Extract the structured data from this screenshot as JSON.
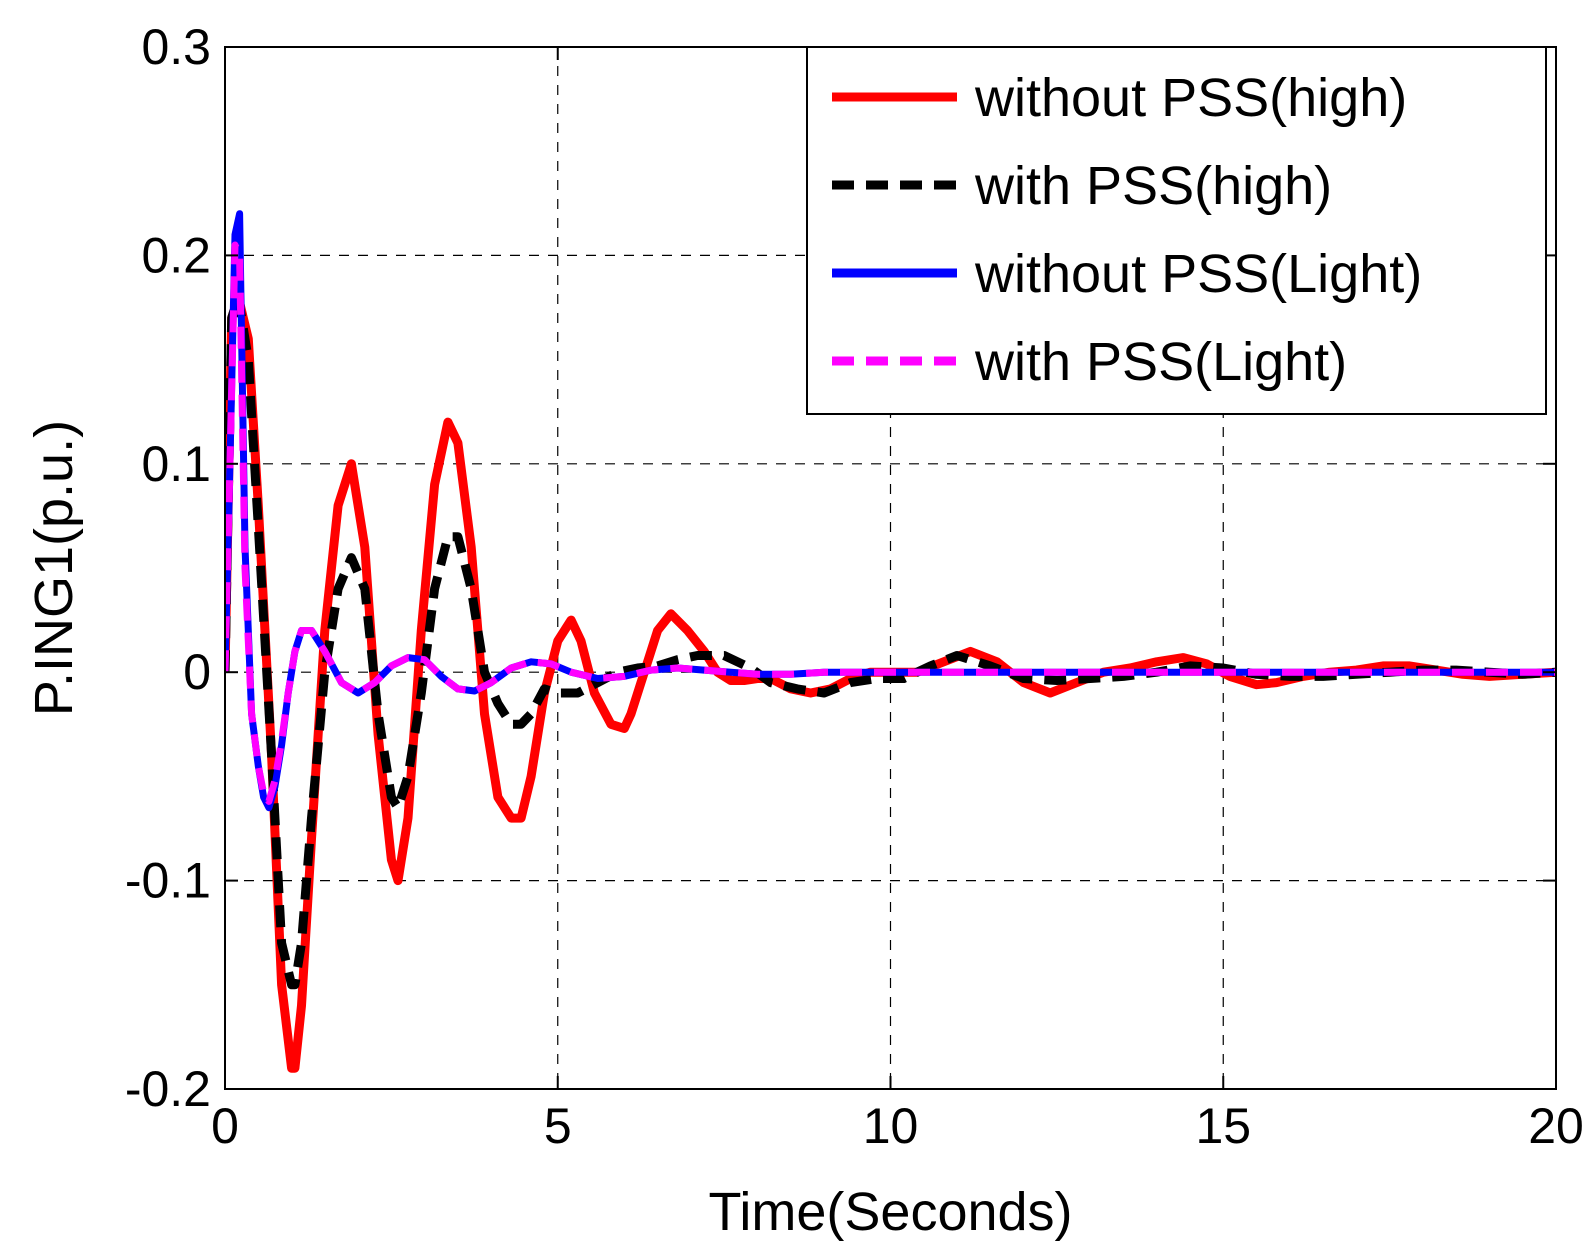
{
  "chart_data": {
    "type": "line",
    "title": "",
    "xlabel": "Time(Seconds)",
    "ylabel": "P.ING1(p.u.)",
    "xlim": [
      0,
      20
    ],
    "ylim": [
      -0.2,
      0.3
    ],
    "xticks": [
      0,
      5,
      10,
      15,
      20
    ],
    "xtick_labels": [
      "0",
      "5",
      "10",
      "15",
      "20"
    ],
    "yticks": [
      -0.2,
      -0.1,
      0,
      0.1,
      0.2,
      0.3
    ],
    "ytick_labels": [
      "-0.2",
      "-0.1",
      "0",
      "0.1",
      "0.2",
      "0.3"
    ],
    "grid": true,
    "legend_position": "top-right",
    "series": [
      {
        "name": "without PSS(high)",
        "color": "#ff0000",
        "dash": "solid",
        "x": [
          0,
          0.1,
          0.2,
          0.35,
          0.5,
          0.7,
          0.85,
          1.0,
          1.05,
          1.15,
          1.3,
          1.5,
          1.7,
          1.9,
          2.1,
          2.3,
          2.5,
          2.6,
          2.75,
          2.95,
          3.15,
          3.35,
          3.5,
          3.7,
          3.9,
          4.1,
          4.3,
          4.45,
          4.6,
          4.8,
          5.0,
          5.2,
          5.35,
          5.55,
          5.8,
          6.0,
          6.1,
          6.3,
          6.5,
          6.7,
          6.95,
          7.2,
          7.4,
          7.6,
          7.8,
          8.0,
          8.2,
          8.5,
          8.8,
          9.1,
          9.4,
          9.7,
          10.0,
          10.4,
          10.8,
          11.2,
          11.6,
          12.0,
          12.4,
          12.8,
          13.2,
          13.6,
          14.0,
          14.4,
          14.75,
          15.1,
          15.5,
          15.8,
          16.2,
          16.6,
          17.0,
          17.4,
          17.8,
          18.2,
          18.6,
          19.0,
          19.5,
          20.0
        ],
        "y": [
          0.0,
          0.17,
          0.18,
          0.16,
          0.08,
          -0.04,
          -0.15,
          -0.19,
          -0.19,
          -0.16,
          -0.08,
          0.02,
          0.08,
          0.1,
          0.06,
          -0.03,
          -0.09,
          -0.1,
          -0.07,
          0.02,
          0.09,
          0.12,
          0.11,
          0.06,
          -0.02,
          -0.06,
          -0.07,
          -0.07,
          -0.05,
          -0.01,
          0.015,
          0.025,
          0.015,
          -0.01,
          -0.025,
          -0.027,
          -0.02,
          0.0,
          0.02,
          0.028,
          0.02,
          0.01,
          0.0,
          -0.004,
          -0.004,
          -0.003,
          -0.003,
          -0.008,
          -0.01,
          -0.008,
          -0.003,
          0.0,
          0.0,
          0.0,
          0.005,
          0.01,
          0.005,
          -0.005,
          -0.01,
          -0.005,
          0.0,
          0.002,
          0.005,
          0.007,
          0.004,
          -0.002,
          -0.006,
          -0.005,
          -0.002,
          0.0,
          0.001,
          0.003,
          0.003,
          0.001,
          -0.001,
          -0.002,
          -0.001,
          0.0
        ]
      },
      {
        "name": "with PSS(high)",
        "color": "#000000",
        "dash": "dashed",
        "x": [
          0,
          0.1,
          0.2,
          0.35,
          0.5,
          0.7,
          0.85,
          1.0,
          1.05,
          1.15,
          1.3,
          1.5,
          1.7,
          1.9,
          2.1,
          2.3,
          2.5,
          2.6,
          2.75,
          2.95,
          3.15,
          3.35,
          3.5,
          3.7,
          3.9,
          4.1,
          4.3,
          4.45,
          4.6,
          4.8,
          5.0,
          5.3,
          5.6,
          5.9,
          6.2,
          6.5,
          6.8,
          7.1,
          7.5,
          7.9,
          8.2,
          8.6,
          9.0,
          9.4,
          9.8,
          10.2,
          10.6,
          11.0,
          11.5,
          12.0,
          12.5,
          13.0,
          13.5,
          14.0,
          14.5,
          15.0,
          15.5,
          16.0,
          16.5,
          17.0,
          17.5,
          18.0,
          18.5,
          19.0,
          19.5,
          20.0
        ],
        "y": [
          0.0,
          0.17,
          0.18,
          0.15,
          0.07,
          -0.04,
          -0.13,
          -0.15,
          -0.15,
          -0.13,
          -0.07,
          0.0,
          0.04,
          0.055,
          0.04,
          -0.02,
          -0.06,
          -0.065,
          -0.05,
          -0.01,
          0.04,
          0.065,
          0.065,
          0.04,
          0.0,
          -0.015,
          -0.025,
          -0.025,
          -0.02,
          -0.008,
          -0.01,
          -0.01,
          -0.005,
          0.0,
          0.002,
          0.003,
          0.006,
          0.008,
          0.008,
          0.002,
          -0.005,
          -0.008,
          -0.01,
          -0.005,
          -0.003,
          -0.003,
          0.003,
          0.008,
          0.003,
          -0.003,
          -0.004,
          -0.003,
          -0.002,
          0.0,
          0.003,
          0.002,
          -0.001,
          -0.002,
          -0.002,
          -0.001,
          0.0,
          0.001,
          0.001,
          0.0,
          -0.001,
          0.0
        ]
      },
      {
        "name": "without PSS(Light)",
        "color": "#0000ff",
        "dash": "solid",
        "x": [
          0,
          0.06,
          0.15,
          0.22,
          0.3,
          0.4,
          0.5,
          0.58,
          0.66,
          0.75,
          0.85,
          0.95,
          1.05,
          1.15,
          1.3,
          1.5,
          1.75,
          2.0,
          2.25,
          2.5,
          2.75,
          3.0,
          3.25,
          3.5,
          3.75,
          4.0,
          4.3,
          4.6,
          4.9,
          5.2,
          5.6,
          6.0,
          6.4,
          6.8,
          7.2,
          7.6,
          8.0,
          8.5,
          9.0,
          9.5,
          10.0,
          11.0,
          12.0,
          13.0,
          14.0,
          15.0,
          16.0,
          17.0,
          18.0,
          19.0,
          20.0
        ],
        "y": [
          0.0,
          0.08,
          0.21,
          0.22,
          0.06,
          -0.02,
          -0.045,
          -0.06,
          -0.065,
          -0.055,
          -0.035,
          -0.01,
          0.01,
          0.02,
          0.02,
          0.01,
          -0.005,
          -0.01,
          -0.005,
          0.003,
          0.007,
          0.006,
          -0.002,
          -0.008,
          -0.009,
          -0.005,
          0.002,
          0.005,
          0.004,
          0.0,
          -0.003,
          -0.002,
          0.001,
          0.002,
          0.001,
          0.0,
          -0.001,
          -0.001,
          0.0,
          0.0,
          0.0,
          0.0,
          0.0,
          0.0,
          0.0,
          0.0,
          0.0,
          0.0,
          0.0,
          0.0,
          0.0
        ]
      },
      {
        "name": "with PSS(Light)",
        "color": "#ff00ff",
        "dash": "dashed",
        "x": [
          0,
          0.06,
          0.15,
          0.22,
          0.3,
          0.4,
          0.5,
          0.58,
          0.66,
          0.75,
          0.85,
          0.95,
          1.05,
          1.15,
          1.3,
          1.5,
          1.75,
          2.0,
          2.25,
          2.5,
          2.75,
          3.0,
          3.25,
          3.5,
          3.75,
          4.0,
          4.3,
          4.6,
          4.9,
          5.2,
          5.6,
          6.0,
          6.4,
          6.8,
          7.2,
          7.6,
          8.0,
          8.5,
          9.0,
          9.5,
          10.0,
          11.0,
          12.0,
          13.0,
          14.0,
          15.0,
          16.0,
          17.0,
          18.0,
          19.0,
          20.0
        ],
        "y": [
          0.0,
          0.08,
          0.205,
          0.2,
          0.05,
          -0.02,
          -0.045,
          -0.058,
          -0.062,
          -0.052,
          -0.033,
          -0.01,
          0.01,
          0.02,
          0.02,
          0.01,
          -0.005,
          -0.01,
          -0.005,
          0.003,
          0.007,
          0.006,
          -0.002,
          -0.008,
          -0.009,
          -0.005,
          0.002,
          0.005,
          0.004,
          0.0,
          -0.003,
          -0.002,
          0.001,
          0.002,
          0.001,
          0.0,
          -0.001,
          -0.001,
          0.0,
          0.0,
          0.0,
          0.0,
          0.0,
          0.0,
          0.0,
          0.0,
          0.0,
          0.0,
          0.0,
          0.0,
          0.0
        ]
      }
    ]
  }
}
